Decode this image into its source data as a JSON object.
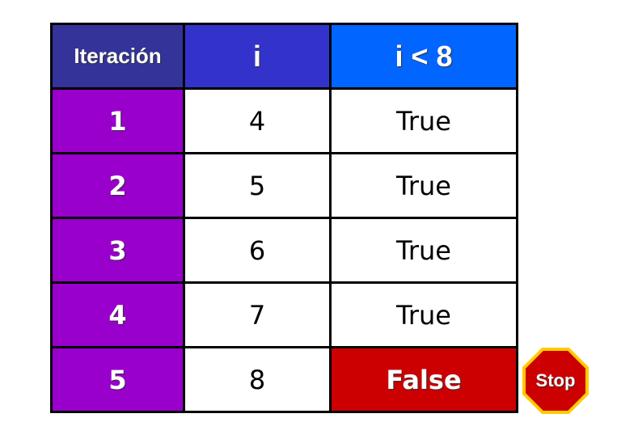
{
  "headers": [
    "Iteración",
    "i",
    "i < 8"
  ],
  "rows": [
    {
      "iteration": "1",
      "i": "4",
      "condition": "True"
    },
    {
      "iteration": "2",
      "i": "5",
      "condition": "True"
    },
    {
      "iteration": "3",
      "i": "6",
      "condition": "True"
    },
    {
      "iteration": "4",
      "i": "7",
      "condition": "True"
    },
    {
      "iteration": "5",
      "i": "8",
      "condition": "False"
    }
  ],
  "stop_sign": {
    "label": "Stop",
    "fill": "#cc0000",
    "border": "#ffcc00"
  },
  "colors": {
    "header_iteration": "#333399",
    "header_i": "#3333cc",
    "header_condition": "#0066ff",
    "iteration_column": "#9900cc",
    "false_cell": "#cc0000"
  }
}
